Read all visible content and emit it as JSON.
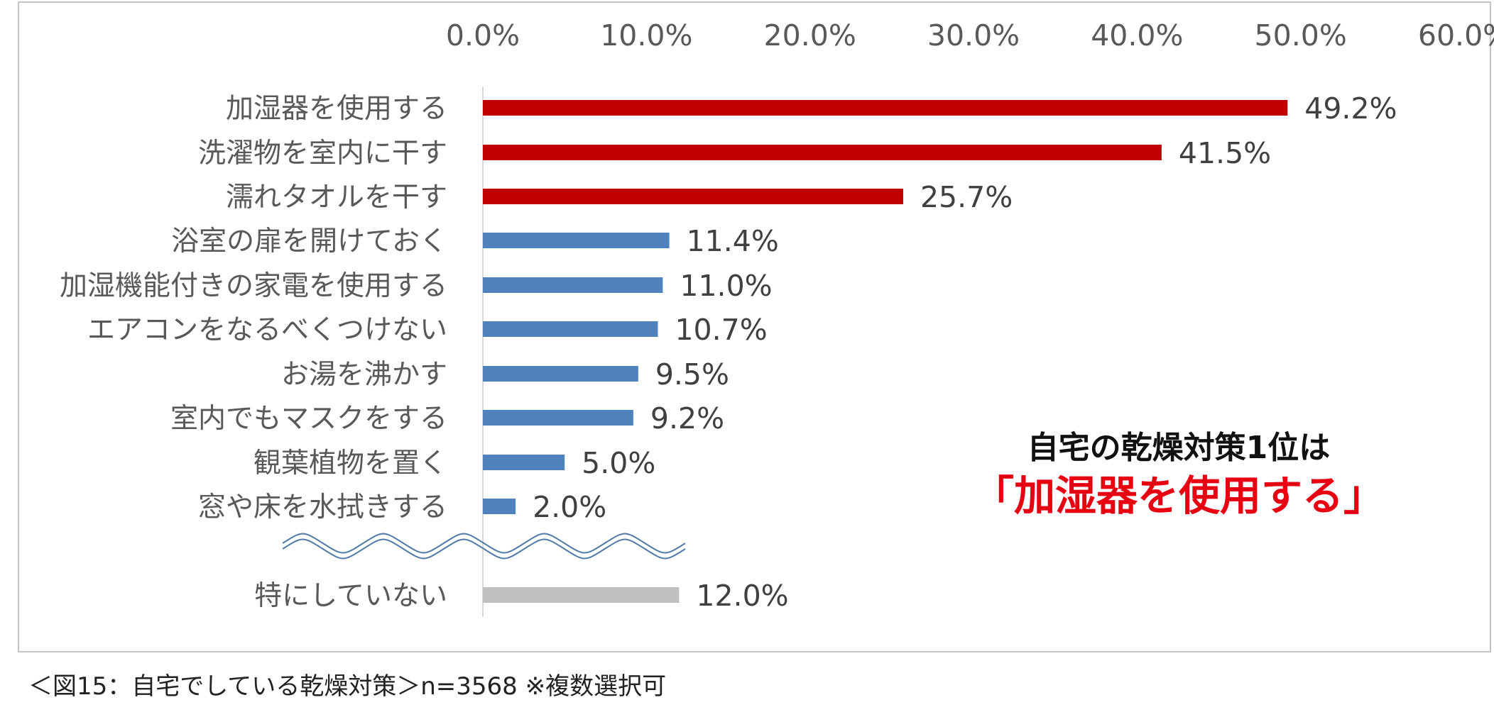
{
  "chart_data": {
    "type": "bar",
    "orientation": "horizontal",
    "categories": [
      "加湿器を使用する",
      "洗濯物を室内に干す",
      "濡れタオルを干す",
      "浴室の扉を開けておく",
      "加湿機能付きの家電を使用する",
      "エアコンをなるべくつけない",
      "お湯を沸かす",
      "室内でもマスクをする",
      "観葉植物を置く",
      "窓や床を水拭きする",
      "特にしていない"
    ],
    "values": [
      49.2,
      41.5,
      25.7,
      11.4,
      11.0,
      10.7,
      9.5,
      9.2,
      5.0,
      2.0,
      12.0
    ],
    "value_labels": [
      "49.2%",
      "41.5%",
      "25.7%",
      "11.4%",
      "11.0%",
      "10.7%",
      "9.5%",
      "9.2%",
      "5.0%",
      "2.0%",
      "12.0%"
    ],
    "bar_colors": [
      "#c00000",
      "#c00000",
      "#c00000",
      "#4f81bd",
      "#4f81bd",
      "#4f81bd",
      "#4f81bd",
      "#4f81bd",
      "#4f81bd",
      "#4f81bd",
      "#bfbfbf"
    ],
    "xlim": [
      0,
      60
    ],
    "x_ticks": [
      "0.0%",
      "10.0%",
      "20.0%",
      "30.0%",
      "40.0%",
      "50.0%",
      "60.0%"
    ],
    "x_axis_position": "top",
    "axis_break_before_last": true,
    "grid": false,
    "title": "",
    "xlabel": "",
    "ylabel": ""
  },
  "callout": {
    "line1": "自宅の乾燥対策1位は",
    "line2": "「加湿器を使用する」",
    "line1_color": "#111111",
    "line2_color": "#e60012"
  },
  "caption": "＜図15：自宅でしている乾燥対策＞n=3568 ※複数選択可"
}
